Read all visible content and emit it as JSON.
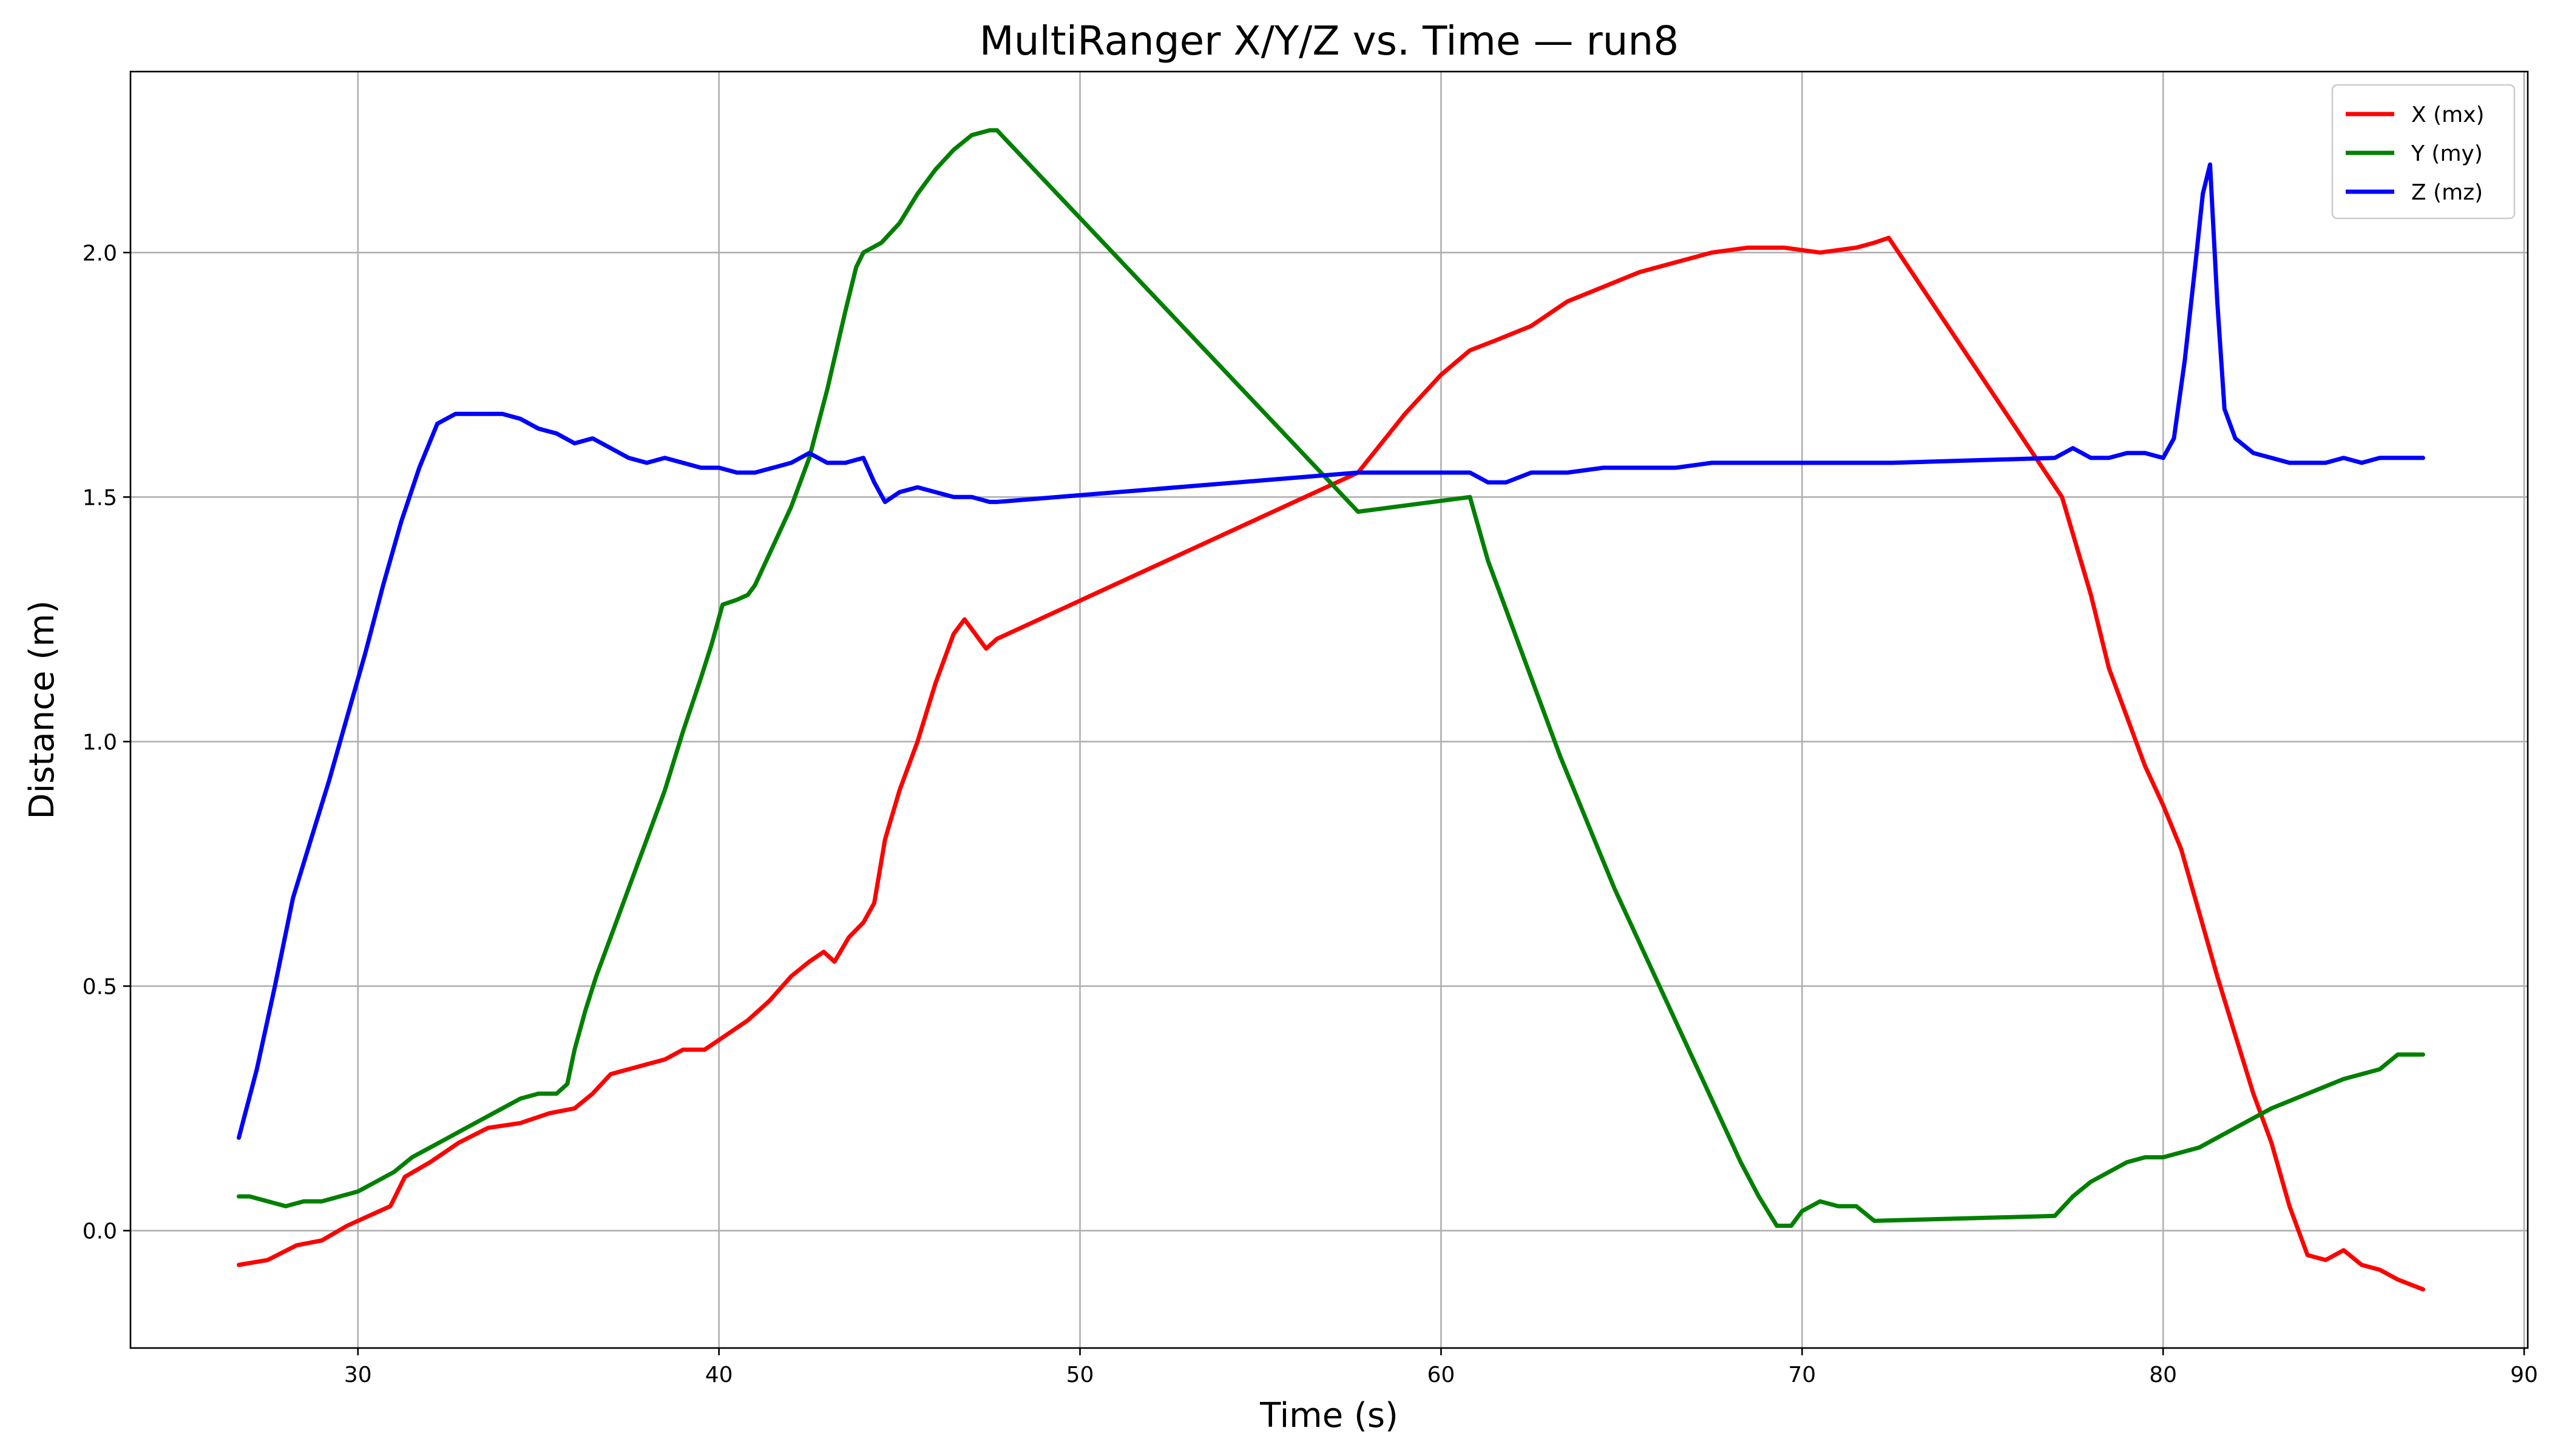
{
  "chart_data": {
    "type": "line",
    "title": "MultiRanger X/Y/Z vs. Time — run8",
    "xlabel": "Time (s)",
    "ylabel": "Distance (m)",
    "xlim": [
      23.7,
      90.1
    ],
    "ylim": [
      -0.24,
      2.37
    ],
    "xticks": [
      30,
      40,
      50,
      60,
      70,
      80,
      90
    ],
    "yticks": [
      0.0,
      0.5,
      1.0,
      1.5,
      2.0
    ],
    "xtick_labels": [
      "30",
      "40",
      "50",
      "60",
      "70",
      "80",
      "90"
    ],
    "ytick_labels": [
      "0.0",
      "0.5",
      "1.0",
      "1.5",
      "2.0"
    ],
    "grid": true,
    "legend_position": "top-right",
    "series": [
      {
        "name": "X (mx)",
        "color": "#ff0000",
        "x": [
          26.7,
          27.5,
          28.3,
          29.0,
          29.7,
          30.3,
          30.9,
          31.3,
          32.0,
          32.8,
          33.6,
          34.5,
          35.3,
          36.0,
          36.5,
          37.0,
          37.5,
          38.0,
          38.5,
          39.0,
          39.6,
          40.2,
          40.8,
          41.4,
          42.0,
          42.5,
          42.9,
          43.2,
          43.6,
          44.0,
          44.3,
          44.6,
          45.0,
          45.5,
          46.0,
          46.5,
          46.8,
          47.1,
          47.4,
          47.7,
          57.7,
          59.0,
          60.0,
          60.8,
          61.5,
          62.5,
          63.5,
          64.5,
          65.5,
          66.5,
          67.5,
          68.5,
          69.5,
          70.5,
          71.5,
          72.0,
          72.4,
          77.2,
          78.0,
          78.5,
          79.0,
          79.5,
          80.0,
          80.5,
          81.0,
          81.5,
          82.0,
          82.5,
          83.0,
          83.5,
          84.0,
          84.5,
          85.0,
          85.5,
          86.0,
          86.5,
          87.2
        ],
        "values": [
          -0.07,
          -0.06,
          -0.03,
          -0.02,
          0.01,
          0.03,
          0.05,
          0.11,
          0.14,
          0.18,
          0.21,
          0.22,
          0.24,
          0.25,
          0.28,
          0.32,
          0.33,
          0.34,
          0.35,
          0.37,
          0.37,
          0.4,
          0.43,
          0.47,
          0.52,
          0.55,
          0.57,
          0.55,
          0.6,
          0.63,
          0.67,
          0.8,
          0.9,
          1.0,
          1.12,
          1.22,
          1.25,
          1.22,
          1.19,
          1.21,
          1.55,
          1.67,
          1.75,
          1.8,
          1.82,
          1.85,
          1.9,
          1.93,
          1.96,
          1.98,
          2.0,
          2.01,
          2.01,
          2.0,
          2.01,
          2.02,
          2.03,
          1.5,
          1.3,
          1.15,
          1.05,
          0.95,
          0.87,
          0.78,
          0.65,
          0.52,
          0.4,
          0.28,
          0.18,
          0.05,
          -0.05,
          -0.06,
          -0.04,
          -0.07,
          -0.08,
          -0.1,
          -0.12
        ]
      },
      {
        "name": "Y (my)",
        "color": "#008000",
        "x": [
          26.7,
          27.0,
          27.5,
          28.0,
          28.5,
          29.0,
          29.5,
          30.0,
          30.5,
          31.0,
          31.5,
          32.0,
          32.5,
          33.0,
          33.5,
          34.0,
          34.5,
          35.0,
          35.5,
          35.8,
          36.0,
          36.3,
          36.6,
          37.0,
          37.5,
          38.0,
          38.5,
          39.0,
          39.5,
          39.8,
          40.1,
          40.5,
          40.8,
          41.0,
          41.5,
          42.0,
          42.5,
          43.0,
          43.5,
          43.8,
          44.0,
          44.5,
          45.0,
          45.5,
          46.0,
          46.5,
          47.0,
          47.5,
          47.7,
          57.7,
          60.8,
          61.3,
          61.8,
          62.3,
          62.8,
          63.3,
          63.8,
          64.3,
          64.8,
          65.3,
          65.8,
          66.3,
          66.8,
          67.3,
          67.8,
          68.3,
          68.8,
          69.3,
          69.7,
          70.0,
          70.5,
          71.0,
          71.5,
          72.0,
          77.0,
          77.5,
          78.0,
          78.5,
          79.0,
          79.5,
          80.0,
          81.0,
          82.0,
          83.0,
          84.0,
          85.0,
          86.0,
          86.5,
          87.2
        ],
        "values": [
          0.07,
          0.07,
          0.06,
          0.05,
          0.06,
          0.06,
          0.07,
          0.08,
          0.1,
          0.12,
          0.15,
          0.17,
          0.19,
          0.21,
          0.23,
          0.25,
          0.27,
          0.28,
          0.28,
          0.3,
          0.37,
          0.45,
          0.52,
          0.6,
          0.7,
          0.8,
          0.9,
          1.02,
          1.13,
          1.2,
          1.28,
          1.29,
          1.3,
          1.32,
          1.4,
          1.48,
          1.58,
          1.72,
          1.88,
          1.97,
          2.0,
          2.02,
          2.06,
          2.12,
          2.17,
          2.21,
          2.24,
          2.25,
          2.25,
          1.47,
          1.5,
          1.37,
          1.27,
          1.17,
          1.07,
          0.97,
          0.88,
          0.79,
          0.7,
          0.62,
          0.54,
          0.46,
          0.38,
          0.3,
          0.22,
          0.14,
          0.07,
          0.01,
          0.01,
          0.04,
          0.06,
          0.05,
          0.05,
          0.02,
          0.03,
          0.07,
          0.1,
          0.12,
          0.14,
          0.15,
          0.15,
          0.17,
          0.21,
          0.25,
          0.28,
          0.31,
          0.33,
          0.36,
          0.36
        ]
      },
      {
        "name": "Z (mz)",
        "color": "#0000ff",
        "x": [
          26.7,
          27.2,
          27.7,
          28.2,
          28.7,
          29.2,
          29.7,
          30.2,
          30.7,
          31.2,
          31.7,
          32.2,
          32.7,
          33.0,
          33.5,
          34.0,
          34.5,
          35.0,
          35.5,
          36.0,
          36.5,
          37.0,
          37.5,
          38.0,
          38.5,
          39.0,
          39.5,
          40.0,
          40.5,
          41.0,
          41.5,
          42.0,
          42.5,
          43.0,
          43.5,
          44.0,
          44.3,
          44.6,
          45.0,
          45.5,
          46.0,
          46.5,
          47.0,
          47.5,
          47.7,
          57.7,
          60.8,
          61.3,
          61.8,
          62.5,
          63.5,
          64.5,
          65.5,
          66.5,
          67.5,
          68.5,
          69.5,
          70.5,
          71.5,
          72.5,
          77.0,
          77.5,
          78.0,
          78.5,
          79.0,
          79.5,
          80.0,
          80.3,
          80.6,
          80.9,
          81.1,
          81.3,
          81.5,
          81.7,
          82.0,
          82.5,
          83.0,
          83.5,
          84.0,
          84.5,
          85.0,
          85.5,
          86.0,
          86.5,
          87.2
        ],
        "values": [
          0.19,
          0.33,
          0.5,
          0.68,
          0.8,
          0.92,
          1.05,
          1.18,
          1.32,
          1.45,
          1.56,
          1.65,
          1.67,
          1.67,
          1.67,
          1.67,
          1.66,
          1.64,
          1.63,
          1.61,
          1.62,
          1.6,
          1.58,
          1.57,
          1.58,
          1.57,
          1.56,
          1.56,
          1.55,
          1.55,
          1.56,
          1.57,
          1.59,
          1.57,
          1.57,
          1.58,
          1.53,
          1.49,
          1.51,
          1.52,
          1.51,
          1.5,
          1.5,
          1.49,
          1.49,
          1.55,
          1.55,
          1.53,
          1.53,
          1.55,
          1.55,
          1.56,
          1.56,
          1.56,
          1.57,
          1.57,
          1.57,
          1.57,
          1.57,
          1.57,
          1.58,
          1.6,
          1.58,
          1.58,
          1.59,
          1.59,
          1.58,
          1.62,
          1.78,
          1.98,
          2.12,
          2.18,
          1.9,
          1.68,
          1.62,
          1.59,
          1.58,
          1.57,
          1.57,
          1.57,
          1.58,
          1.57,
          1.58,
          1.58,
          1.58
        ]
      }
    ]
  }
}
